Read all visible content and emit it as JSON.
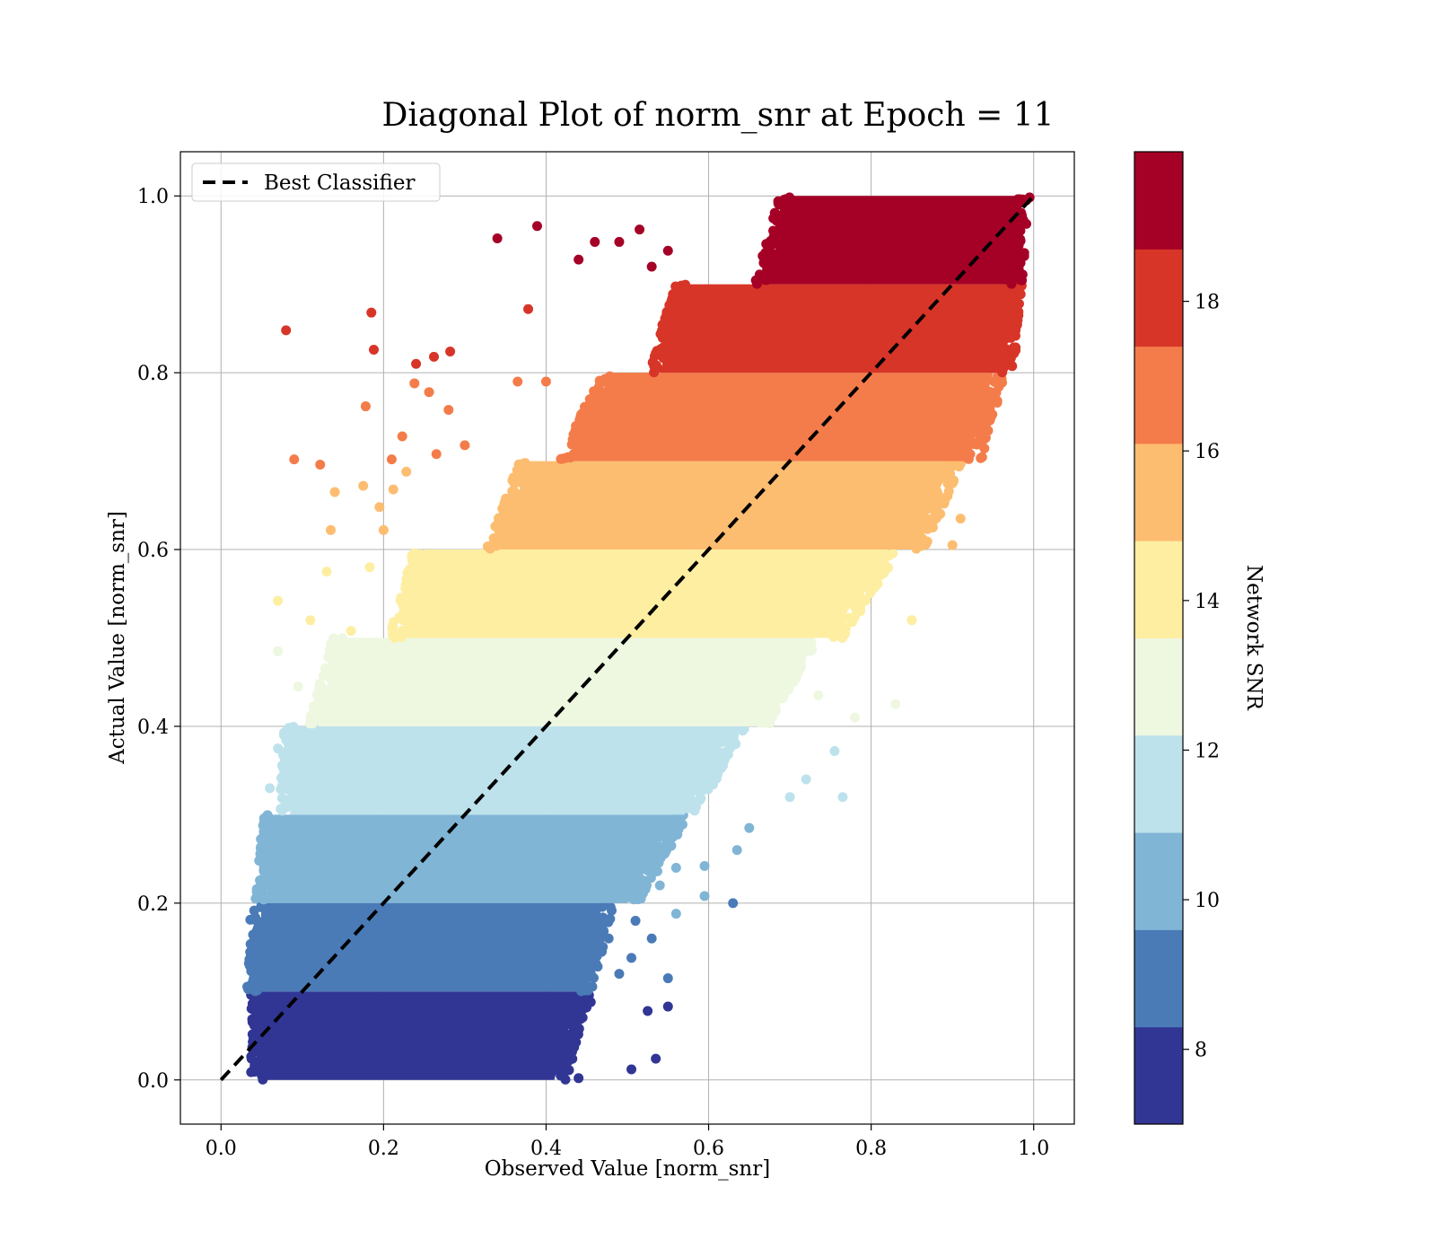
{
  "chart_data": {
    "type": "scatter",
    "title": "Diagonal Plot of norm_snr at Epoch = 11",
    "xlabel": "Observed Value [norm_snr]",
    "ylabel": "Actual Value [norm_snr]",
    "xlim": [
      -0.05,
      1.05
    ],
    "ylim": [
      -0.05,
      1.05
    ],
    "x_ticks": [
      0.0,
      0.2,
      0.4,
      0.6,
      0.8,
      1.0
    ],
    "y_ticks": [
      0.0,
      0.2,
      0.4,
      0.6,
      0.8,
      1.0
    ],
    "x_tick_labels": [
      "0.0",
      "0.2",
      "0.4",
      "0.6",
      "0.8",
      "1.0"
    ],
    "y_tick_labels": [
      "0.0",
      "0.2",
      "0.4",
      "0.6",
      "0.8",
      "1.0"
    ],
    "grid": true,
    "legend": {
      "placement": "upper-left",
      "entries": [
        {
          "label": "Best Classifier",
          "style": "dashed",
          "color": "#000000"
        }
      ]
    },
    "reference_line": {
      "label": "Best Classifier",
      "x": [
        0.0,
        1.0
      ],
      "y": [
        0.0,
        1.0
      ],
      "style": "dashed",
      "color": "#000000"
    },
    "colorbar": {
      "label": "Network SNR",
      "range": [
        7,
        20
      ],
      "ticks": [
        8,
        10,
        12,
        14,
        16,
        18
      ],
      "tick_labels": [
        "8",
        "10",
        "12",
        "14",
        "16",
        "18"
      ],
      "bands": [
        {
          "range": [
            7.0,
            8.3
          ],
          "color": "#313695"
        },
        {
          "range": [
            8.3,
            9.6
          ],
          "color": "#4a7bb7"
        },
        {
          "range": [
            9.6,
            10.9
          ],
          "color": "#81b5d6"
        },
        {
          "range": [
            10.9,
            12.2
          ],
          "color": "#bde2ec"
        },
        {
          "range": [
            12.2,
            13.5
          ],
          "color": "#eef7e0"
        },
        {
          "range": [
            13.5,
            14.8
          ],
          "color": "#feeea2"
        },
        {
          "range": [
            14.8,
            16.1
          ],
          "color": "#fdbd70"
        },
        {
          "range": [
            16.1,
            17.4
          ],
          "color": "#f47c4a"
        },
        {
          "range": [
            17.4,
            18.7
          ],
          "color": "#d73528"
        },
        {
          "range": [
            18.7,
            20.0
          ],
          "color": "#a50026"
        }
      ]
    },
    "bands": [
      {
        "y_range": [
          0.0,
          0.1
        ],
        "x_left": [
          0.05,
          0.05
        ],
        "x_right": [
          0.41,
          0.44
        ],
        "color": "#313695"
      },
      {
        "y_range": [
          0.1,
          0.2
        ],
        "x_left": [
          0.045,
          0.05
        ],
        "x_right": [
          0.44,
          0.47
        ],
        "color": "#4a7bb7"
      },
      {
        "y_range": [
          0.2,
          0.3
        ],
        "x_left": [
          0.055,
          0.065
        ],
        "x_right": [
          0.5,
          0.56
        ],
        "color": "#81b5d6"
      },
      {
        "y_range": [
          0.3,
          0.4
        ],
        "x_left": [
          0.085,
          0.09
        ],
        "x_right": [
          0.57,
          0.63
        ],
        "color": "#bde2ec"
      },
      {
        "y_range": [
          0.4,
          0.5
        ],
        "x_left": [
          0.12,
          0.15
        ],
        "x_right": [
          0.66,
          0.72
        ],
        "color": "#eef7e0"
      },
      {
        "y_range": [
          0.5,
          0.6
        ],
        "x_left": [
          0.22,
          0.25
        ],
        "x_right": [
          0.75,
          0.82
        ],
        "color": "#feeea2"
      },
      {
        "y_range": [
          0.6,
          0.7
        ],
        "x_left": [
          0.34,
          0.38
        ],
        "x_right": [
          0.85,
          0.9
        ],
        "color": "#fdbd70"
      },
      {
        "y_range": [
          0.7,
          0.8
        ],
        "x_left": [
          0.43,
          0.48
        ],
        "x_right": [
          0.92,
          0.95
        ],
        "color": "#f47c4a"
      },
      {
        "y_range": [
          0.8,
          0.9
        ],
        "x_left": [
          0.54,
          0.57
        ],
        "x_right": [
          0.96,
          0.97
        ],
        "color": "#d73528"
      },
      {
        "y_range": [
          0.9,
          1.0
        ],
        "x_left": [
          0.67,
          0.7
        ],
        "x_right": [
          0.97,
          0.98
        ],
        "color": "#a50026"
      }
    ],
    "outliers": [
      {
        "x": 0.08,
        "y": 0.848,
        "color": "#d73528"
      },
      {
        "x": 0.185,
        "y": 0.868,
        "color": "#d73528"
      },
      {
        "x": 0.188,
        "y": 0.826,
        "color": "#d73528"
      },
      {
        "x": 0.24,
        "y": 0.81,
        "color": "#d73528"
      },
      {
        "x": 0.262,
        "y": 0.818,
        "color": "#d73528"
      },
      {
        "x": 0.282,
        "y": 0.824,
        "color": "#d73528"
      },
      {
        "x": 0.378,
        "y": 0.872,
        "color": "#d73528"
      },
      {
        "x": 0.34,
        "y": 0.952,
        "color": "#a50026"
      },
      {
        "x": 0.389,
        "y": 0.966,
        "color": "#a50026"
      },
      {
        "x": 0.44,
        "y": 0.928,
        "color": "#a50026"
      },
      {
        "x": 0.46,
        "y": 0.948,
        "color": "#a50026"
      },
      {
        "x": 0.49,
        "y": 0.948,
        "color": "#a50026"
      },
      {
        "x": 0.515,
        "y": 0.962,
        "color": "#a50026"
      },
      {
        "x": 0.53,
        "y": 0.92,
        "color": "#a50026"
      },
      {
        "x": 0.55,
        "y": 0.938,
        "color": "#a50026"
      },
      {
        "x": 0.09,
        "y": 0.702,
        "color": "#f47c4a"
      },
      {
        "x": 0.122,
        "y": 0.696,
        "color": "#f47c4a"
      },
      {
        "x": 0.178,
        "y": 0.762,
        "color": "#f47c4a"
      },
      {
        "x": 0.21,
        "y": 0.702,
        "color": "#f47c4a"
      },
      {
        "x": 0.223,
        "y": 0.728,
        "color": "#f47c4a"
      },
      {
        "x": 0.238,
        "y": 0.788,
        "color": "#f47c4a"
      },
      {
        "x": 0.256,
        "y": 0.778,
        "color": "#f47c4a"
      },
      {
        "x": 0.265,
        "y": 0.708,
        "color": "#f47c4a"
      },
      {
        "x": 0.28,
        "y": 0.758,
        "color": "#f47c4a"
      },
      {
        "x": 0.3,
        "y": 0.718,
        "color": "#f47c4a"
      },
      {
        "x": 0.365,
        "y": 0.79,
        "color": "#f47c4a"
      },
      {
        "x": 0.4,
        "y": 0.79,
        "color": "#f47c4a"
      },
      {
        "x": 0.93,
        "y": 0.74,
        "color": "#f47c4a"
      },
      {
        "x": 0.135,
        "y": 0.622,
        "color": "#fdbd70"
      },
      {
        "x": 0.14,
        "y": 0.665,
        "color": "#fdbd70"
      },
      {
        "x": 0.175,
        "y": 0.672,
        "color": "#fdbd70"
      },
      {
        "x": 0.195,
        "y": 0.648,
        "color": "#fdbd70"
      },
      {
        "x": 0.2,
        "y": 0.622,
        "color": "#fdbd70"
      },
      {
        "x": 0.212,
        "y": 0.668,
        "color": "#fdbd70"
      },
      {
        "x": 0.228,
        "y": 0.688,
        "color": "#fdbd70"
      },
      {
        "x": 0.9,
        "y": 0.605,
        "color": "#fdbd70"
      },
      {
        "x": 0.91,
        "y": 0.635,
        "color": "#fdbd70"
      },
      {
        "x": 0.07,
        "y": 0.542,
        "color": "#feeea2"
      },
      {
        "x": 0.11,
        "y": 0.52,
        "color": "#feeea2"
      },
      {
        "x": 0.13,
        "y": 0.575,
        "color": "#feeea2"
      },
      {
        "x": 0.16,
        "y": 0.508,
        "color": "#feeea2"
      },
      {
        "x": 0.183,
        "y": 0.58,
        "color": "#feeea2"
      },
      {
        "x": 0.85,
        "y": 0.52,
        "color": "#feeea2"
      },
      {
        "x": 0.07,
        "y": 0.485,
        "color": "#eef7e0"
      },
      {
        "x": 0.095,
        "y": 0.445,
        "color": "#eef7e0"
      },
      {
        "x": 0.83,
        "y": 0.425,
        "color": "#eef7e0"
      },
      {
        "x": 0.78,
        "y": 0.41,
        "color": "#eef7e0"
      },
      {
        "x": 0.735,
        "y": 0.435,
        "color": "#eef7e0"
      },
      {
        "x": 0.06,
        "y": 0.33,
        "color": "#bde2ec"
      },
      {
        "x": 0.07,
        "y": 0.375,
        "color": "#bde2ec"
      },
      {
        "x": 0.765,
        "y": 0.32,
        "color": "#bde2ec"
      },
      {
        "x": 0.755,
        "y": 0.372,
        "color": "#bde2ec"
      },
      {
        "x": 0.72,
        "y": 0.34,
        "color": "#bde2ec"
      },
      {
        "x": 0.7,
        "y": 0.32,
        "color": "#bde2ec"
      },
      {
        "x": 0.65,
        "y": 0.285,
        "color": "#81b5d6"
      },
      {
        "x": 0.635,
        "y": 0.26,
        "color": "#81b5d6"
      },
      {
        "x": 0.595,
        "y": 0.242,
        "color": "#81b5d6"
      },
      {
        "x": 0.56,
        "y": 0.24,
        "color": "#81b5d6"
      },
      {
        "x": 0.54,
        "y": 0.22,
        "color": "#81b5d6"
      },
      {
        "x": 0.595,
        "y": 0.208,
        "color": "#81b5d6"
      },
      {
        "x": 0.56,
        "y": 0.188,
        "color": "#81b5d6"
      },
      {
        "x": 0.63,
        "y": 0.2,
        "color": "#4a7bb7"
      },
      {
        "x": 0.53,
        "y": 0.16,
        "color": "#4a7bb7"
      },
      {
        "x": 0.55,
        "y": 0.115,
        "color": "#4a7bb7"
      },
      {
        "x": 0.51,
        "y": 0.18,
        "color": "#4a7bb7"
      },
      {
        "x": 0.505,
        "y": 0.138,
        "color": "#4a7bb7"
      },
      {
        "x": 0.477,
        "y": 0.16,
        "color": "#4a7bb7"
      },
      {
        "x": 0.49,
        "y": 0.12,
        "color": "#4a7bb7"
      },
      {
        "x": 0.55,
        "y": 0.083,
        "color": "#313695"
      },
      {
        "x": 0.525,
        "y": 0.078,
        "color": "#313695"
      },
      {
        "x": 0.535,
        "y": 0.024,
        "color": "#313695"
      },
      {
        "x": 0.505,
        "y": 0.012,
        "color": "#313695"
      },
      {
        "x": 0.44,
        "y": 0.002,
        "color": "#313695"
      },
      {
        "x": 0.455,
        "y": 0.088,
        "color": "#313695"
      },
      {
        "x": 0.43,
        "y": 0.068,
        "color": "#313695"
      },
      {
        "x": 0.41,
        "y": 0.052,
        "color": "#313695"
      }
    ]
  }
}
